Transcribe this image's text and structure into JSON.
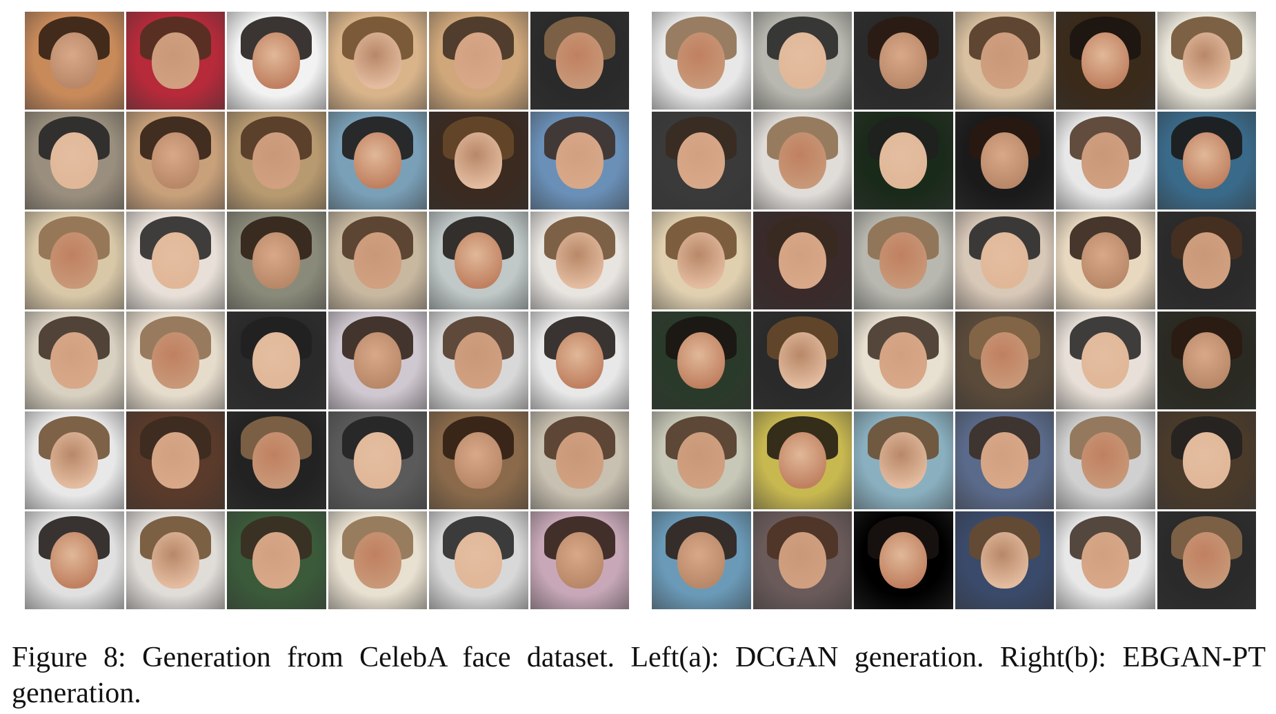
{
  "caption": "Figure 8: Generation from CelebA face dataset. Left(a): DCGAN generation. Right(b): EBGAN-PT generation.",
  "panels": [
    {
      "id": "a",
      "description": "DCGAN generated faces",
      "rows": 6,
      "cols": 6,
      "tiles": [
        [
          "#c98a5a",
          "#b62a3a",
          "#f2f2f2",
          "#d9b48a",
          "#cfa77a",
          "#2a2a2a"
        ],
        [
          "#9a8f7e",
          "#c8a07a",
          "#b89a70",
          "#7aa0b8",
          "#3a2a20",
          "#6a90b8"
        ],
        [
          "#d9c8a8",
          "#e8e0d8",
          "#8a8a7a",
          "#c8b8a0",
          "#c0c8c8",
          "#e8e4e0"
        ],
        [
          "#d8d0c0",
          "#e6dccc",
          "#2a2a2a",
          "#d0c8d0",
          "#d8d8d8",
          "#e8e8e8"
        ],
        [
          "#e8e8e8",
          "#5a3a2a",
          "#222222",
          "#5a5a5a",
          "#8a6a4a",
          "#c8c0b0"
        ],
        [
          "#e0e0e0",
          "#e0dcd8",
          "#3a5a3a",
          "#e8e0d0",
          "#d8d8d8",
          "#c8a8b8"
        ]
      ]
    },
    {
      "id": "b",
      "description": "EBGAN-PT generated faces",
      "rows": 6,
      "cols": 6,
      "tiles": [
        [
          "#e8e8e8",
          "#b8b8b0",
          "#2a2a2a",
          "#d8c0a0",
          "#3a2a1a",
          "#e8e4d8"
        ],
        [
          "#3a3a3a",
          "#e0dcd8",
          "#1a2a1a",
          "#1a1a1a",
          "#e8e8e8",
          "#3a6a8a"
        ],
        [
          "#e0d0b0",
          "#3a2a2a",
          "#b8b8b0",
          "#d8c8b8",
          "#e8d8c0",
          "#2a2a2a"
        ],
        [
          "#2a3a2a",
          "#2a2a2a",
          "#e8e0d0",
          "#5a4a3a",
          "#e8e0d8",
          "#2a2a22"
        ],
        [
          "#c8c8b8",
          "#c8b850",
          "#8ab0c0",
          "#5a6a8a",
          "#d0d0d0",
          "#4a3a2a"
        ],
        [
          "#6a9ab8",
          "#6a5a5a",
          "#000000",
          "#3a4a6a",
          "#e8e8e8",
          "#2a2a2a"
        ]
      ]
    }
  ]
}
